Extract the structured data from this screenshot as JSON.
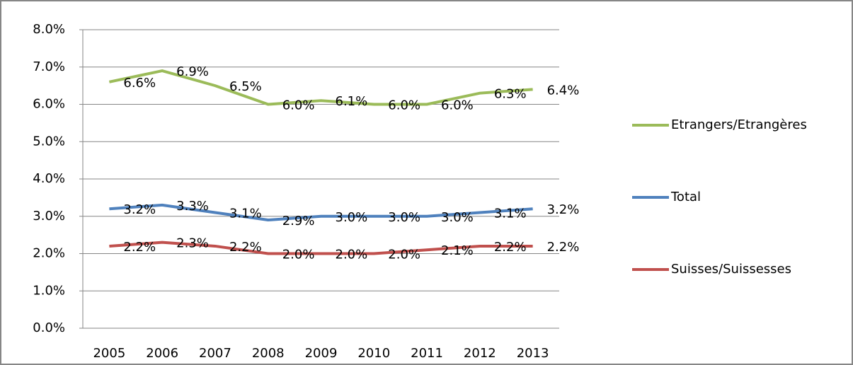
{
  "chart_data": {
    "type": "line",
    "categories": [
      "2005",
      "2006",
      "2007",
      "2008",
      "2009",
      "2010",
      "2011",
      "2012",
      "2013"
    ],
    "series": [
      {
        "name": "Etrangers/Etrangères",
        "color": "#9bbb59",
        "values": [
          6.6,
          6.9,
          6.5,
          6.0,
          6.1,
          6.0,
          6.0,
          6.3,
          6.4
        ],
        "value_labels": [
          "6.6%",
          "6.9%",
          "6.5%",
          "6.0%",
          "6.1%",
          "6.0%",
          "6.0%",
          "6.3%",
          "6.4%"
        ]
      },
      {
        "name": "Total",
        "color": "#4f81bd",
        "values": [
          3.2,
          3.3,
          3.1,
          2.9,
          3.0,
          3.0,
          3.0,
          3.1,
          3.2
        ],
        "value_labels": [
          "3.2%",
          "3.3%",
          "3.1%",
          "2.9%",
          "3.0%",
          "3.0%",
          "3.0%",
          "3.1%",
          "3.2%"
        ]
      },
      {
        "name": "Suisses/Suissesses",
        "color": "#c0504d",
        "values": [
          2.2,
          2.3,
          2.2,
          2.0,
          2.0,
          2.0,
          2.1,
          2.2,
          2.2
        ],
        "value_labels": [
          "2.2%",
          "2.3%",
          "2.2%",
          "2.0%",
          "2.0%",
          "2.0%",
          "2.1%",
          "2.2%",
          "2.2%"
        ]
      }
    ],
    "ylim": [
      0,
      8
    ],
    "yticks": [
      {
        "value": 0,
        "label": "0.0%"
      },
      {
        "value": 1,
        "label": "1.0%"
      },
      {
        "value": 2,
        "label": "2.0%"
      },
      {
        "value": 3,
        "label": "3.0%"
      },
      {
        "value": 4,
        "label": "4.0%"
      },
      {
        "value": 5,
        "label": "5.0%"
      },
      {
        "value": 6,
        "label": "6.0%"
      },
      {
        "value": 7,
        "label": "7.0%"
      },
      {
        "value": 8,
        "label": "8.0%"
      }
    ],
    "grid": true,
    "legend": "right"
  }
}
